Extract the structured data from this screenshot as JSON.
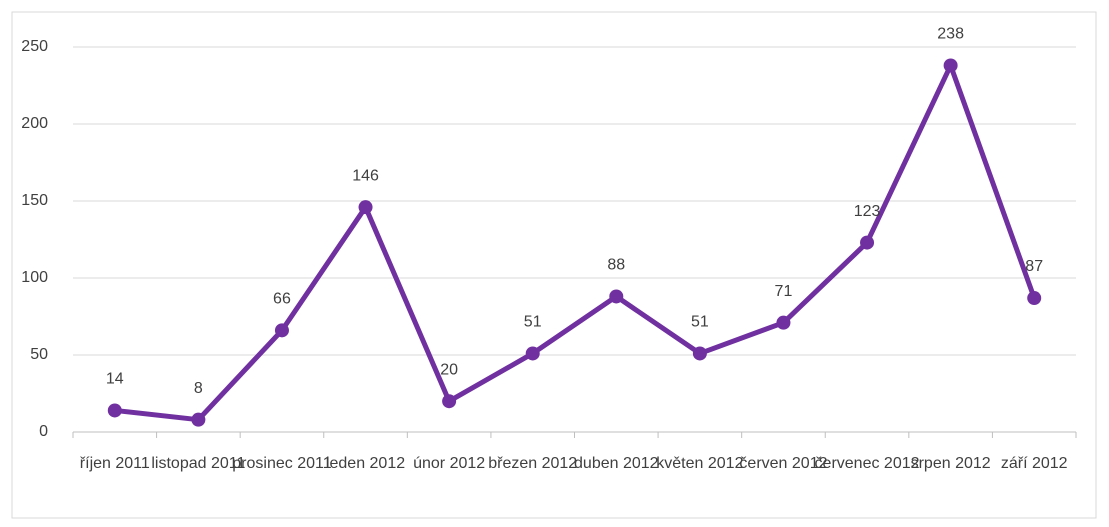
{
  "chart_data": {
    "type": "line",
    "categories": [
      "říjen 2011",
      "listopad 2011",
      "prosinec 2011",
      "leden 2012",
      "únor 2012",
      "březen 2012",
      "duben 2012",
      "květen 2012",
      "červen 2012",
      "červenec 2012",
      "srpen 2012",
      "září 2012"
    ],
    "values": [
      14,
      8,
      66,
      146,
      20,
      51,
      88,
      51,
      71,
      123,
      238,
      87
    ],
    "color": "#7030a0",
    "ylim": [
      0,
      250
    ],
    "yticks": [
      0,
      50,
      100,
      150,
      200,
      250
    ],
    "grid": true
  }
}
